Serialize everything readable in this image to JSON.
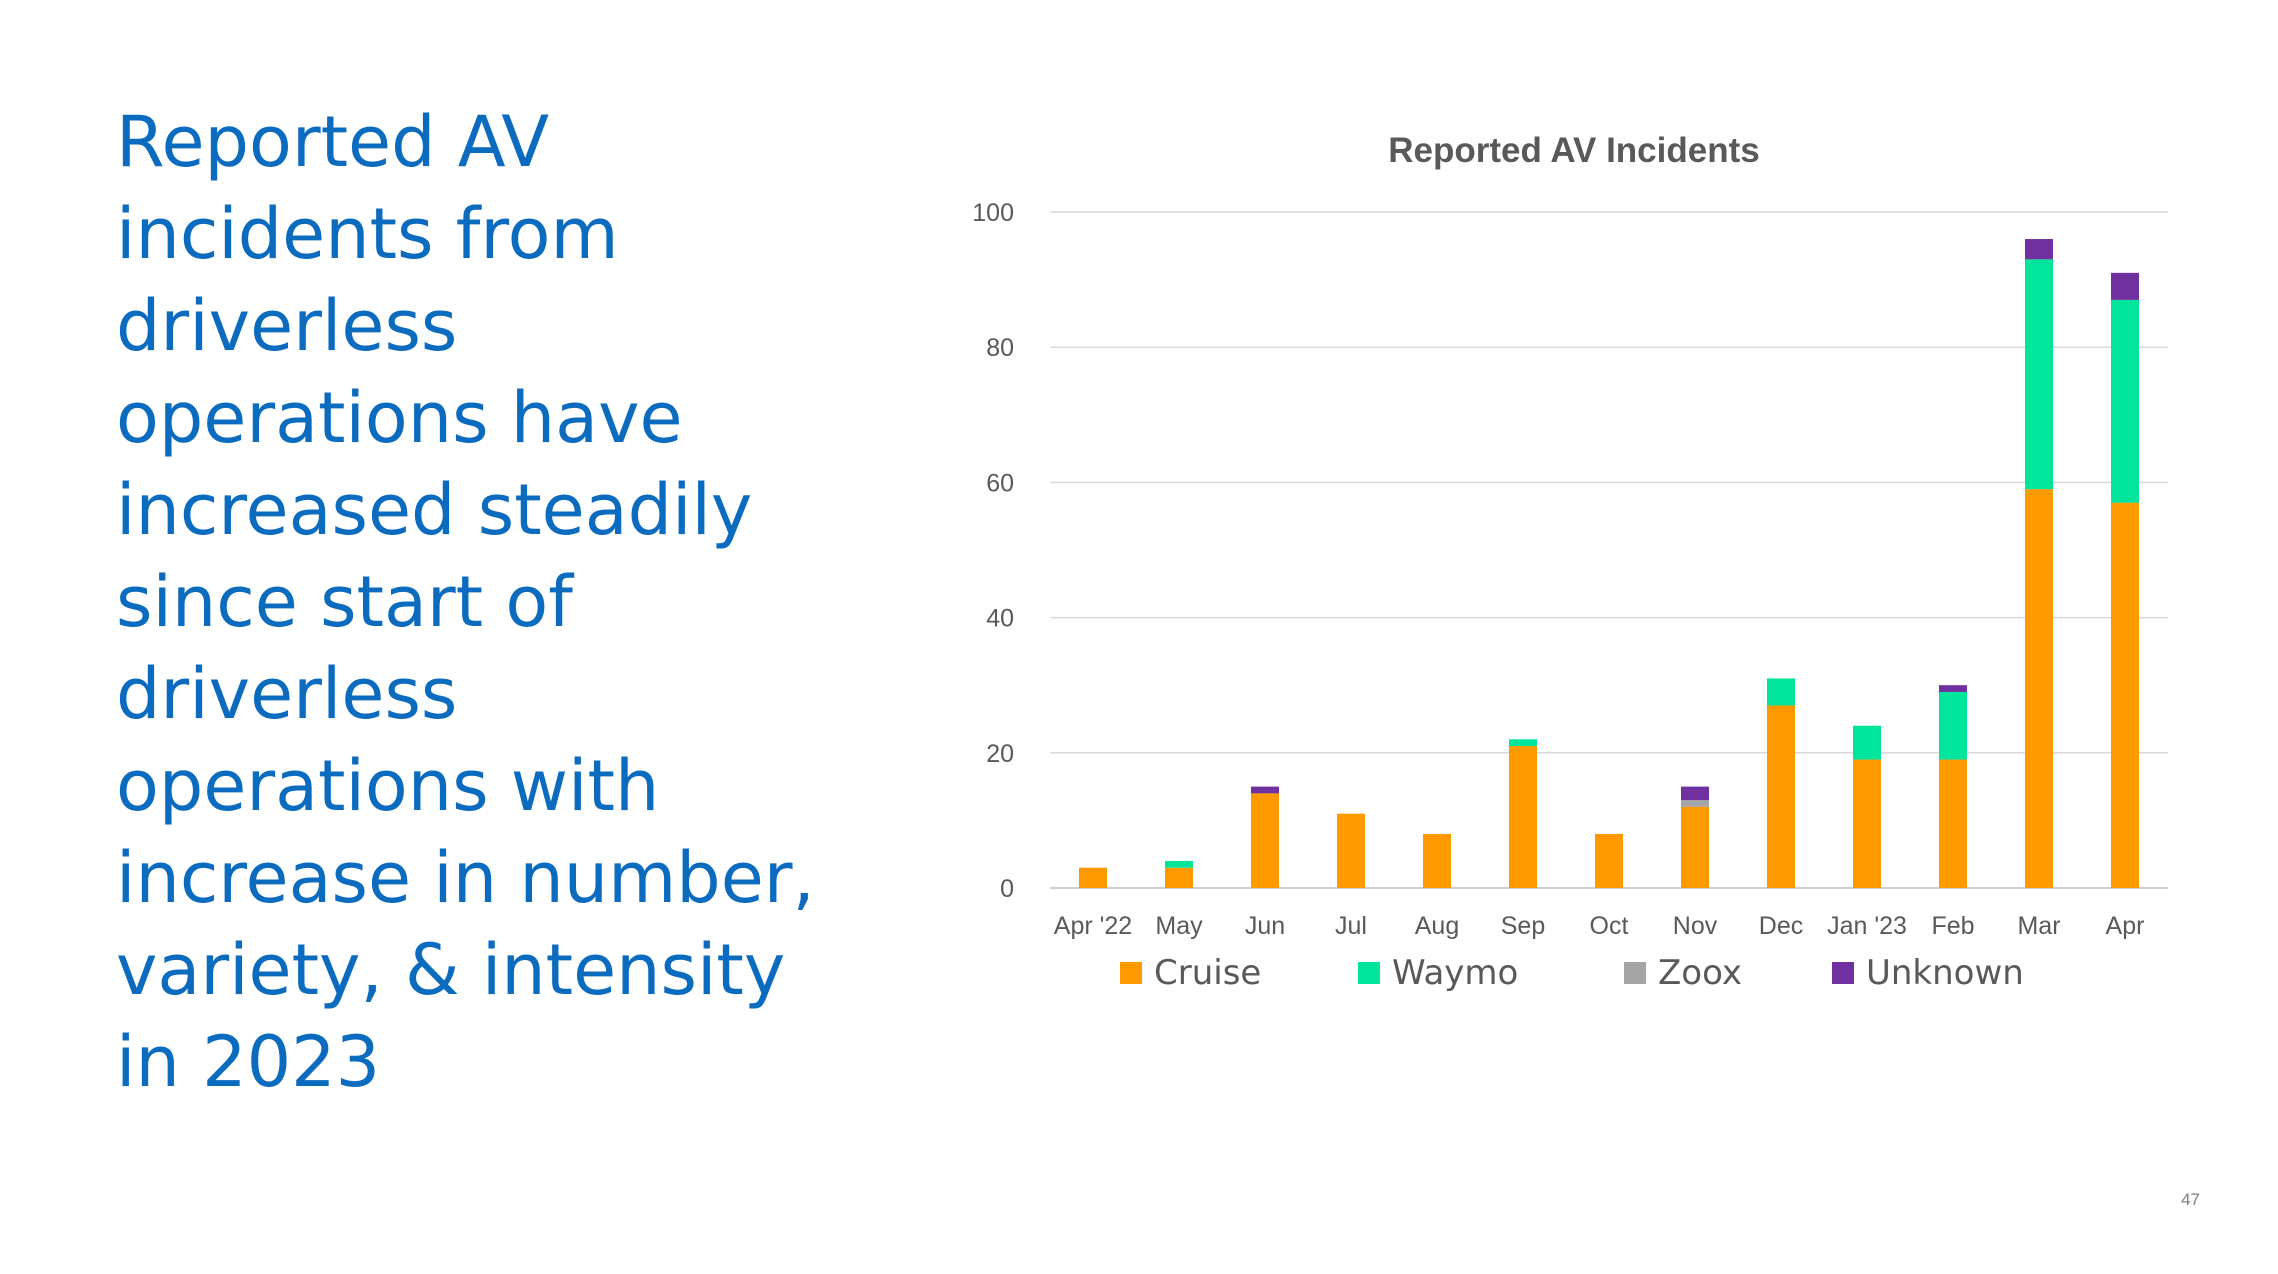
{
  "slide": {
    "headline_lines": [
      "Reported AV",
      "incidents from",
      "driverless",
      "operations have",
      "increased steadily",
      "since start of",
      "driverless",
      "operations with",
      "increase in number,",
      "variety, & intensity",
      "in 2023"
    ],
    "page_number": "47",
    "accent_color": "#0b6bbf"
  },
  "chart_data": {
    "type": "bar",
    "stacked": true,
    "title": "Reported AV Incidents",
    "xlabel": "",
    "ylabel": "",
    "ylim": [
      0,
      100
    ],
    "yticks": [
      0,
      20,
      40,
      60,
      80,
      100
    ],
    "grid": true,
    "legend_position": "bottom",
    "categories": [
      "Apr '22",
      "May",
      "Jun",
      "Jul",
      "Aug",
      "Sep",
      "Oct",
      "Nov",
      "Dec",
      "Jan '23",
      "Feb",
      "Mar",
      "Apr"
    ],
    "series": [
      {
        "name": "Cruise",
        "color": "#ff9900",
        "values": [
          3,
          3,
          14,
          11,
          8,
          21,
          8,
          12,
          27,
          19,
          19,
          59,
          57
        ]
      },
      {
        "name": "Waymo",
        "color": "#00e59b",
        "values": [
          0,
          1,
          0,
          0,
          0,
          1,
          0,
          0,
          4,
          5,
          10,
          34,
          30
        ]
      },
      {
        "name": "Zoox",
        "color": "#a5a5a5",
        "values": [
          0,
          0,
          0,
          0,
          0,
          0,
          0,
          1,
          0,
          0,
          0,
          0,
          0
        ]
      },
      {
        "name": "Unknown",
        "color": "#7030a0",
        "values": [
          0,
          0,
          1,
          0,
          0,
          0,
          0,
          2,
          0,
          0,
          1,
          3,
          4
        ]
      }
    ]
  }
}
